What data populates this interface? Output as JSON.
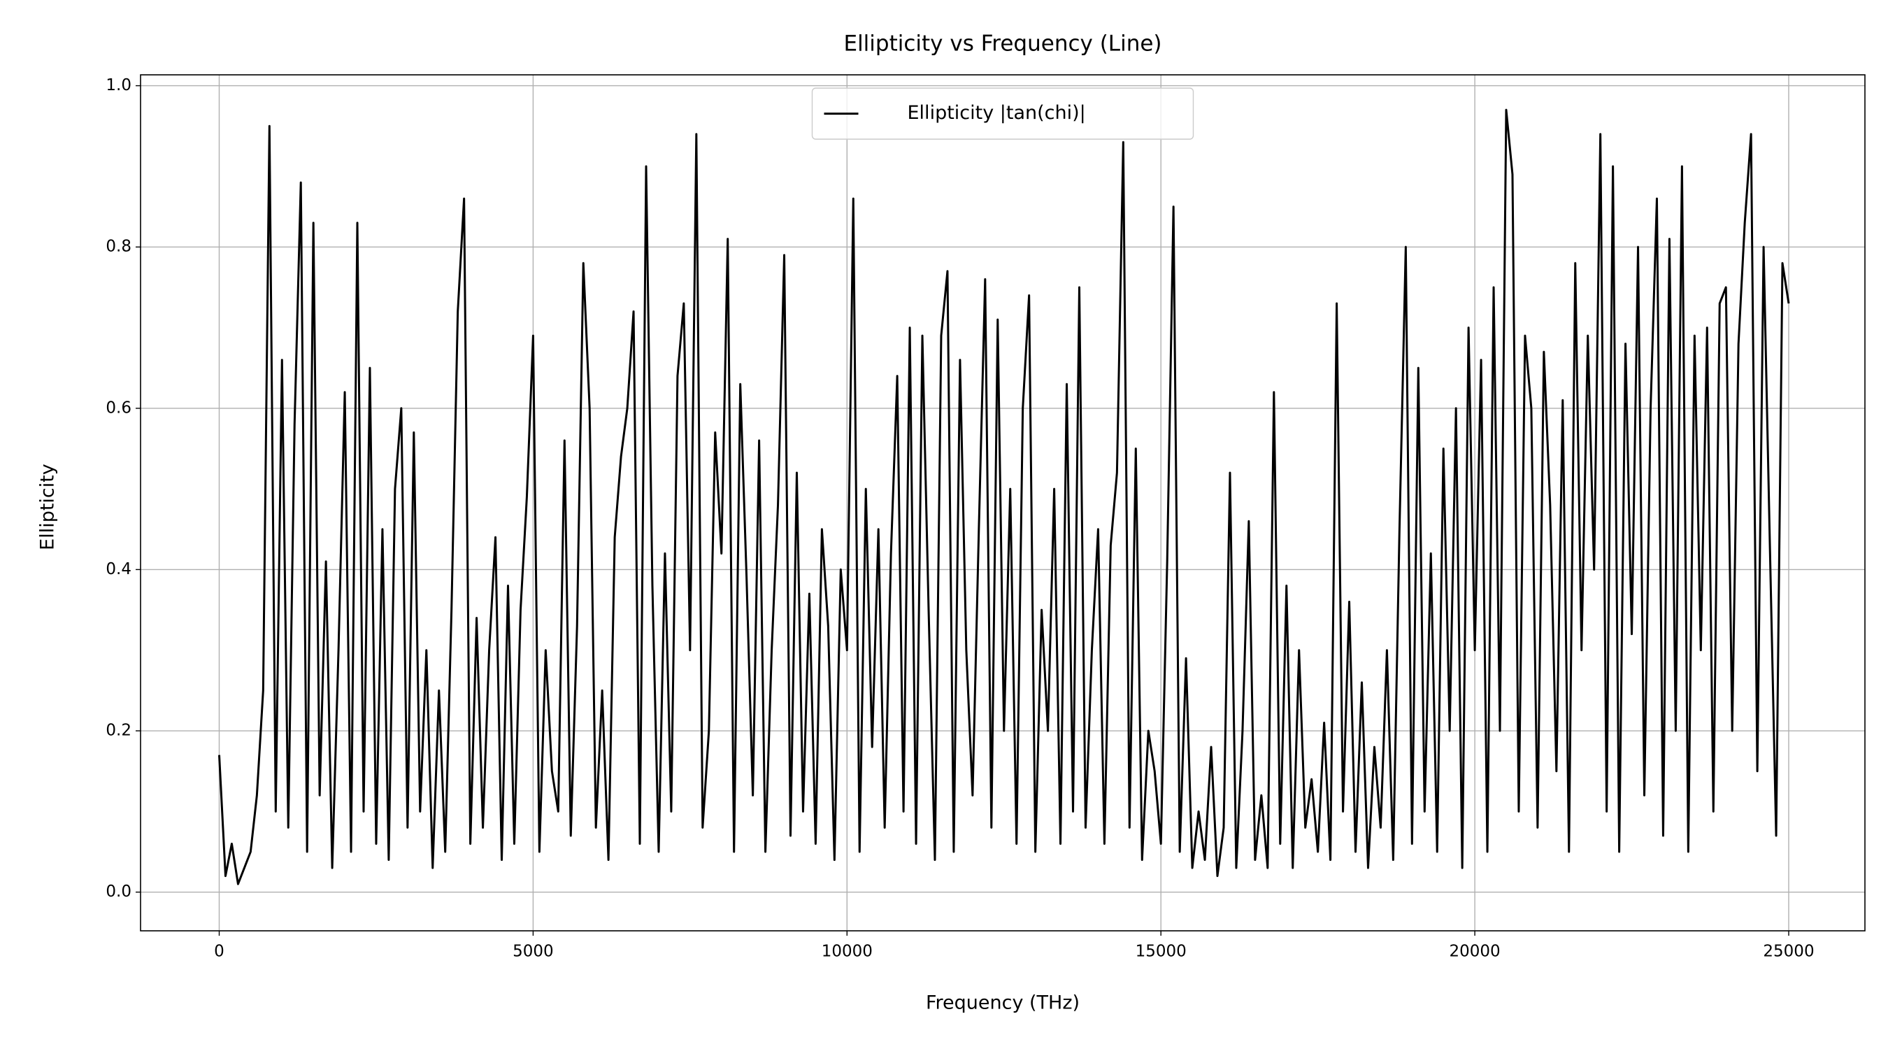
{
  "chart_data": {
    "type": "line",
    "title": "Ellipticity vs Frequency (Line)",
    "x_label": "Frequency (THz)",
    "y_label": "Ellipticity",
    "x": [
      0,
      100,
      200,
      300,
      400,
      500,
      600,
      700,
      800,
      900,
      1000,
      1100,
      1200,
      1300,
      1400,
      1500,
      1600,
      1700,
      1800,
      1900,
      2000,
      2100,
      2200,
      2300,
      2400,
      2500,
      2600,
      2700,
      2800,
      2900,
      3000,
      3100,
      3200,
      3300,
      3400,
      3500,
      3600,
      3700,
      3800,
      3900,
      4000,
      4100,
      4200,
      4300,
      4400,
      4500,
      4600,
      4700,
      4800,
      4900,
      5000,
      5100,
      5200,
      5300,
      5400,
      5500,
      5600,
      5700,
      5800,
      5900,
      6000,
      6100,
      6200,
      6300,
      6400,
      6500,
      6600,
      6700,
      6800,
      6900,
      7000,
      7100,
      7200,
      7300,
      7400,
      7500,
      7600,
      7700,
      7800,
      7900,
      8000,
      8100,
      8200,
      8300,
      8400,
      8500,
      8600,
      8700,
      8800,
      8900,
      9000,
      9100,
      9200,
      9300,
      9400,
      9500,
      9600,
      9700,
      9800,
      9900,
      10000,
      10100,
      10200,
      10300,
      10400,
      10500,
      10600,
      10700,
      10800,
      10900,
      11000,
      11100,
      11200,
      11300,
      11400,
      11500,
      11600,
      11700,
      11800,
      11900,
      12000,
      12100,
      12200,
      12300,
      12400,
      12500,
      12600,
      12700,
      12800,
      12900,
      13000,
      13100,
      13200,
      13300,
      13400,
      13500,
      13600,
      13700,
      13800,
      13900,
      14000,
      14100,
      14200,
      14300,
      14400,
      14500,
      14600,
      14700,
      14800,
      14900,
      15000,
      15100,
      15200,
      15300,
      15400,
      15500,
      15600,
      15700,
      15800,
      15900,
      16000,
      16100,
      16200,
      16300,
      16400,
      16500,
      16600,
      16700,
      16800,
      16900,
      17000,
      17100,
      17200,
      17300,
      17400,
      17500,
      17600,
      17700,
      17800,
      17900,
      18000,
      18100,
      18200,
      18300,
      18400,
      18500,
      18600,
      18700,
      18800,
      18900,
      19000,
      19100,
      19200,
      19300,
      19400,
      19500,
      19600,
      19700,
      19800,
      19900,
      20000,
      20100,
      20200,
      20300,
      20400,
      20500,
      20600,
      20700,
      20800,
      20900,
      21000,
      21100,
      21200,
      21300,
      21400,
      21500,
      21600,
      21700,
      21800,
      21900,
      22000,
      22100,
      22200,
      22300,
      22400,
      22500,
      22600,
      22700,
      22800,
      22900,
      23000,
      23100,
      23200,
      23300,
      23400,
      23500,
      23600,
      23700,
      23800,
      23900,
      24000,
      24100,
      24200,
      24300,
      24400,
      24500,
      24600,
      24700,
      24800,
      24900,
      25000
    ],
    "series": [
      {
        "name": "Ellipticity |tan(chi)|",
        "color": "#000000",
        "values": [
          0.17,
          0.02,
          0.06,
          0.01,
          0.03,
          0.05,
          0.12,
          0.25,
          0.95,
          0.1,
          0.66,
          0.08,
          0.58,
          0.88,
          0.05,
          0.83,
          0.12,
          0.41,
          0.03,
          0.3,
          0.62,
          0.05,
          0.83,
          0.1,
          0.65,
          0.06,
          0.45,
          0.04,
          0.5,
          0.6,
          0.08,
          0.57,
          0.1,
          0.3,
          0.03,
          0.25,
          0.05,
          0.35,
          0.72,
          0.86,
          0.06,
          0.34,
          0.08,
          0.3,
          0.44,
          0.04,
          0.38,
          0.06,
          0.35,
          0.49,
          0.69,
          0.05,
          0.3,
          0.15,
          0.1,
          0.56,
          0.07,
          0.33,
          0.78,
          0.6,
          0.08,
          0.25,
          0.04,
          0.44,
          0.54,
          0.6,
          0.72,
          0.06,
          0.9,
          0.38,
          0.05,
          0.42,
          0.1,
          0.64,
          0.73,
          0.3,
          0.94,
          0.08,
          0.2,
          0.57,
          0.42,
          0.81,
          0.05,
          0.63,
          0.39,
          0.12,
          0.56,
          0.05,
          0.3,
          0.48,
          0.79,
          0.07,
          0.52,
          0.1,
          0.37,
          0.06,
          0.45,
          0.33,
          0.04,
          0.4,
          0.3,
          0.86,
          0.05,
          0.5,
          0.18,
          0.45,
          0.08,
          0.42,
          0.64,
          0.1,
          0.7,
          0.06,
          0.69,
          0.35,
          0.04,
          0.69,
          0.77,
          0.05,
          0.66,
          0.3,
          0.12,
          0.45,
          0.76,
          0.08,
          0.71,
          0.2,
          0.5,
          0.06,
          0.6,
          0.74,
          0.05,
          0.35,
          0.2,
          0.5,
          0.06,
          0.63,
          0.1,
          0.75,
          0.08,
          0.3,
          0.45,
          0.06,
          0.43,
          0.52,
          0.93,
          0.08,
          0.55,
          0.04,
          0.2,
          0.15,
          0.06,
          0.41,
          0.85,
          0.05,
          0.29,
          0.03,
          0.1,
          0.04,
          0.18,
          0.02,
          0.08,
          0.52,
          0.03,
          0.2,
          0.46,
          0.04,
          0.12,
          0.03,
          0.62,
          0.06,
          0.38,
          0.03,
          0.3,
          0.08,
          0.14,
          0.05,
          0.21,
          0.04,
          0.73,
          0.1,
          0.36,
          0.05,
          0.26,
          0.03,
          0.18,
          0.08,
          0.3,
          0.04,
          0.45,
          0.8,
          0.06,
          0.65,
          0.1,
          0.42,
          0.05,
          0.55,
          0.2,
          0.6,
          0.03,
          0.7,
          0.3,
          0.66,
          0.05,
          0.75,
          0.2,
          0.97,
          0.89,
          0.1,
          0.69,
          0.6,
          0.08,
          0.67,
          0.48,
          0.15,
          0.61,
          0.05,
          0.78,
          0.3,
          0.69,
          0.4,
          0.94,
          0.1,
          0.9,
          0.05,
          0.68,
          0.32,
          0.8,
          0.12,
          0.6,
          0.86,
          0.07,
          0.81,
          0.2,
          0.9,
          0.05,
          0.69,
          0.3,
          0.7,
          0.1,
          0.73,
          0.75,
          0.2,
          0.68,
          0.83,
          0.94,
          0.15,
          0.8,
          0.43,
          0.07,
          0.78,
          0.73
        ]
      }
    ],
    "xlim": [
      -1253,
      26214
    ],
    "ylim": [
      -0.048,
      1.0135
    ],
    "xticks": [
      0,
      5000,
      10000,
      15000,
      20000,
      25000
    ],
    "yticks": [
      {
        "value": 0,
        "label": "0.0"
      },
      0.2,
      0.4,
      0.6,
      0.8,
      {
        "value": 1,
        "label": "1.0"
      }
    ],
    "grid": true,
    "legend": "upper center"
  }
}
